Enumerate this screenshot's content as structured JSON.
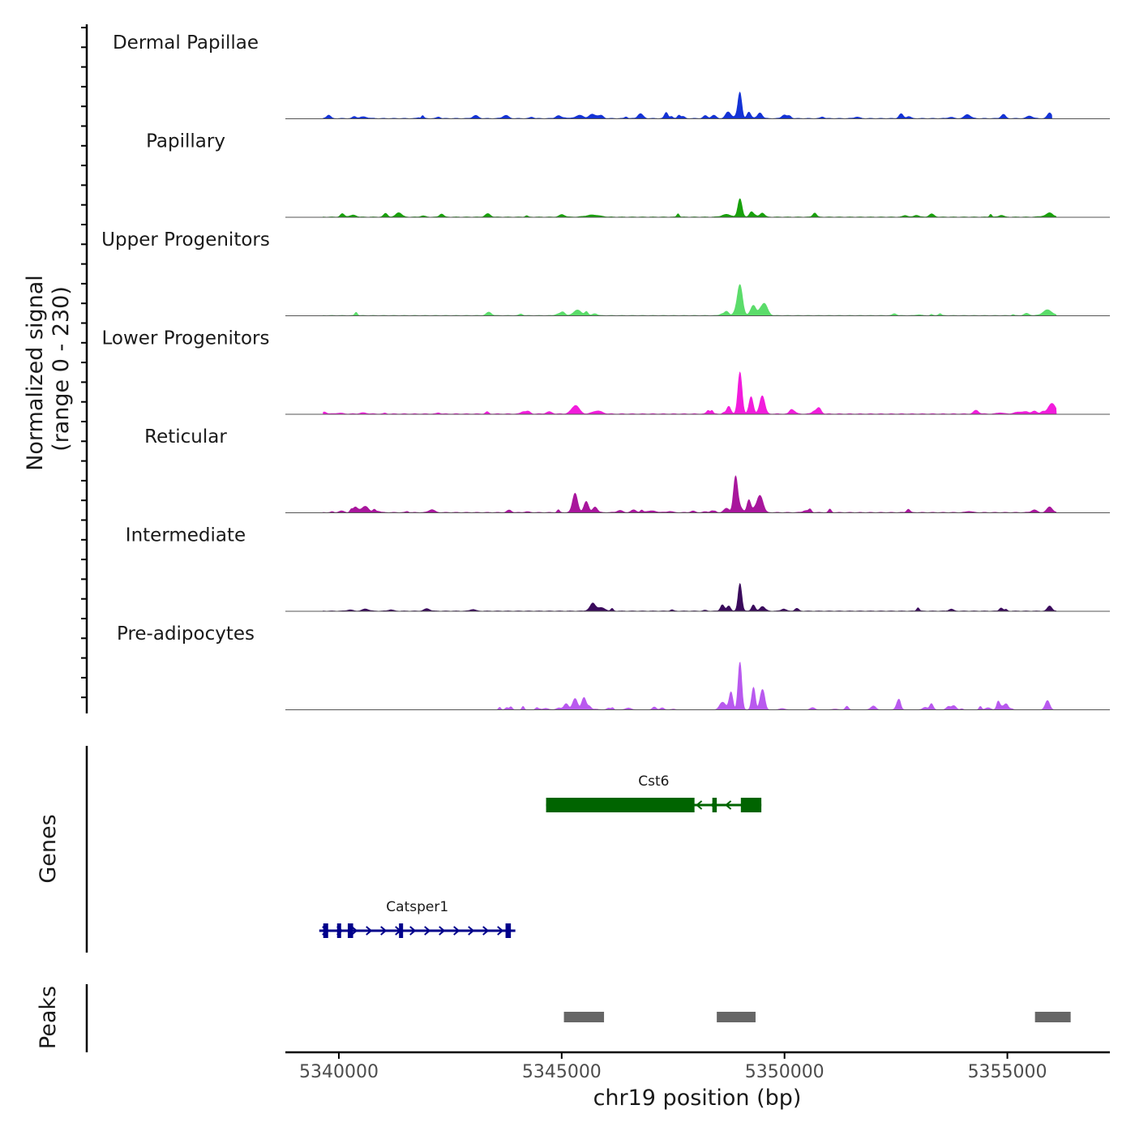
{
  "chart_data": {
    "type": "area",
    "title": "",
    "ylabel": "Normalized signal",
    "ylabel_range": "(range 0 - 230)",
    "ylim": [
      0,
      230
    ],
    "xlabel": "chr19 position (bp)",
    "xlim": [
      5338800,
      5357300
    ],
    "x_ticks": [
      5340000,
      5345000,
      5350000,
      5355000
    ],
    "x_tick_labels": [
      "5340000",
      "5345000",
      "5350000",
      "5355000"
    ],
    "genes_label": "Genes",
    "peaks_label": "Peaks",
    "tracks": [
      {
        "name": "Dermal Papillae",
        "color": "#1433d6",
        "baseline": 5,
        "spans": [
          [
            5339650,
            5356000
          ]
        ],
        "noise": 0.35,
        "peaks": [
          [
            5349000,
            230,
            40
          ],
          [
            5348750,
            50,
            60
          ],
          [
            5349200,
            60,
            40
          ],
          [
            5349450,
            55,
            50
          ],
          [
            5345400,
            30,
            90
          ],
          [
            5345800,
            25,
            80
          ],
          [
            5340550,
            15,
            90
          ],
          [
            5355950,
            55,
            50
          ],
          [
            5355500,
            25,
            60
          ]
        ]
      },
      {
        "name": "Papillary",
        "color": "#18a10b",
        "baseline": 4,
        "spans": [
          [
            5339650,
            5356100
          ]
        ],
        "noise": 0.2,
        "peaks": [
          [
            5349000,
            180,
            45
          ],
          [
            5349250,
            40,
            40
          ],
          [
            5349500,
            40,
            50
          ],
          [
            5348700,
            25,
            100
          ],
          [
            5345700,
            20,
            150
          ],
          [
            5355900,
            15,
            120
          ],
          [
            5340250,
            8,
            100
          ]
        ]
      },
      {
        "name": "Upper Progenitors",
        "color": "#5bdc6a",
        "baseline": 4,
        "spans": [
          [
            5339650,
            5356100
          ]
        ],
        "noise": 0.15,
        "peaks": [
          [
            5349000,
            280,
            55
          ],
          [
            5349300,
            100,
            60
          ],
          [
            5349550,
            110,
            70
          ],
          [
            5348700,
            40,
            50
          ],
          [
            5345350,
            55,
            80
          ],
          [
            5355900,
            55,
            100
          ]
        ]
      },
      {
        "name": "Lower Progenitors",
        "color": "#f21cdc",
        "baseline": 6,
        "spans": [
          [
            5339650,
            5356100
          ]
        ],
        "noise": 0.25,
        "peaks": [
          [
            5349000,
            410,
            45
          ],
          [
            5349250,
            170,
            45
          ],
          [
            5349500,
            180,
            55
          ],
          [
            5348750,
            75,
            45
          ],
          [
            5345300,
            60,
            90
          ],
          [
            5345800,
            30,
            100
          ],
          [
            5356000,
            105,
            80
          ],
          [
            5355300,
            20,
            120
          ],
          [
            5340550,
            10,
            80
          ],
          [
            5340000,
            8,
            80
          ]
        ]
      },
      {
        "name": "Reticular",
        "color": "#a8169c",
        "baseline": 5,
        "spans": [
          [
            5339650,
            5356100
          ]
        ],
        "noise": 0.25,
        "peaks": [
          [
            5348900,
            340,
            45
          ],
          [
            5349200,
            120,
            40
          ],
          [
            5349450,
            140,
            55
          ],
          [
            5348700,
            40,
            60
          ],
          [
            5345300,
            190,
            55
          ],
          [
            5345550,
            110,
            50
          ],
          [
            5345750,
            55,
            50
          ],
          [
            5340600,
            60,
            70
          ],
          [
            5355950,
            55,
            60
          ],
          [
            5355600,
            25,
            60
          ],
          [
            5347000,
            15,
            120
          ],
          [
            5346300,
            20,
            60
          ]
        ]
      },
      {
        "name": "Intermediate",
        "color": "#3a0a5c",
        "baseline": 4,
        "spans": [
          [
            5339650,
            5356100
          ]
        ],
        "noise": 0.2,
        "peaks": [
          [
            5349000,
            270,
            40
          ],
          [
            5348750,
            50,
            40
          ],
          [
            5349300,
            60,
            40
          ],
          [
            5349500,
            45,
            50
          ],
          [
            5345700,
            45,
            80
          ],
          [
            5345900,
            30,
            80
          ],
          [
            5340600,
            20,
            70
          ],
          [
            5355950,
            50,
            50
          ]
        ]
      },
      {
        "name": "Pre-adipocytes",
        "color": "#b959ef",
        "baseline": 0,
        "spans": [
          [
            5339650,
            5339800
          ],
          [
            5343400,
            5356100
          ]
        ],
        "noise": 0.55,
        "peaks": [
          [
            5349000,
            460,
            40
          ],
          [
            5348800,
            170,
            40
          ],
          [
            5349300,
            200,
            40
          ],
          [
            5349500,
            190,
            50
          ],
          [
            5345300,
            110,
            55
          ],
          [
            5345500,
            120,
            50
          ],
          [
            5345100,
            60,
            50
          ],
          [
            5348600,
            50,
            60
          ],
          [
            5352550,
            60,
            40
          ],
          [
            5353300,
            50,
            40
          ],
          [
            5354800,
            50,
            40
          ],
          [
            5355900,
            90,
            50
          ],
          [
            5352000,
            35,
            50
          ],
          [
            5353800,
            40,
            50
          ]
        ]
      }
    ],
    "genes": [
      {
        "name": "Cst6",
        "color": "#006400",
        "strand": "-",
        "start": 5344650,
        "end": 5349480,
        "exons": [
          [
            5344650,
            5347980
          ],
          [
            5348380,
            5348480
          ],
          [
            5349020,
            5349480
          ]
        ]
      },
      {
        "name": "Catsper1",
        "color": "#00008b",
        "strand": "+",
        "start": 5339560,
        "end": 5343960,
        "exons": [
          [
            5339650,
            5339760
          ],
          [
            5339960,
            5340030
          ],
          [
            5340200,
            5340320
          ],
          [
            5341350,
            5341400
          ],
          [
            5343740,
            5343860
          ]
        ]
      }
    ],
    "peak_regions": [
      [
        5345050,
        5345950
      ],
      [
        5348480,
        5349350
      ],
      [
        5355620,
        5356420
      ]
    ],
    "colors": {
      "peak_region": "#666666",
      "axis": "#000000",
      "baseline": "#555555"
    }
  }
}
